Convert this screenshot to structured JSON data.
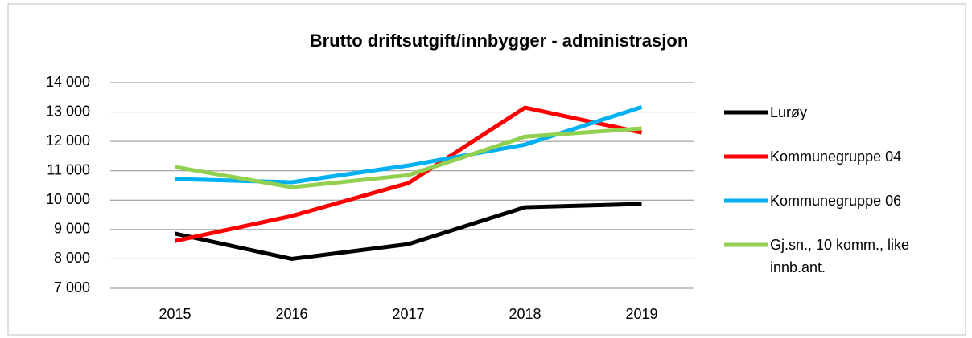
{
  "chart_data": {
    "type": "line",
    "title": "Brutto driftsutgift/innbygger - administrasjon",
    "categories": [
      "2015",
      "2016",
      "2017",
      "2018",
      "2019"
    ],
    "series": [
      {
        "name": "Lurøy",
        "color": "#000000",
        "values": [
          8860,
          8000,
          8500,
          9760,
          9870
        ]
      },
      {
        "name": "Kommunegruppe 04",
        "color": "#ff0000",
        "values": [
          8610,
          9460,
          10580,
          13150,
          12300
        ]
      },
      {
        "name": "Kommunegruppe 06",
        "color": "#00b0f0",
        "values": [
          10720,
          10610,
          11180,
          11890,
          13170
        ]
      },
      {
        "name": "Gj.sn., 10 komm., like innb.ant.",
        "color": "#92d050",
        "values": [
          11130,
          10440,
          10850,
          12160,
          12440
        ]
      }
    ],
    "ylim": [
      7000,
      14000
    ],
    "yticks": [
      {
        "value": 7000,
        "label": "7 000"
      },
      {
        "value": 8000,
        "label": "8 000"
      },
      {
        "value": 9000,
        "label": "9 000"
      },
      {
        "value": 10000,
        "label": "10 000"
      },
      {
        "value": 11000,
        "label": "11 000"
      },
      {
        "value": 12000,
        "label": "12 000"
      },
      {
        "value": 13000,
        "label": "13 000"
      },
      {
        "value": 14000,
        "label": "14 000"
      }
    ],
    "grid": true,
    "legend": "right"
  }
}
